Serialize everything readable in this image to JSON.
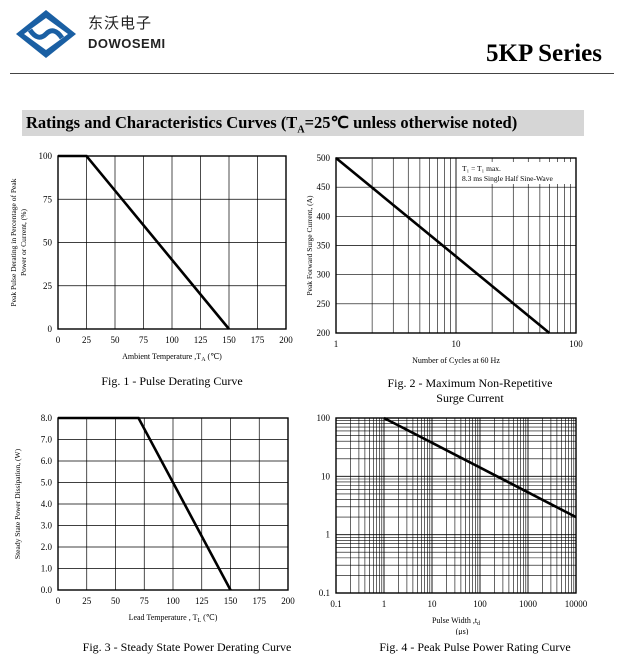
{
  "header": {
    "company_cn": "东沃电子",
    "company_en": "DOWOSEMI",
    "series": "5KP Series"
  },
  "section": {
    "title_prefix": "Ratings and Characteristics Curves (T",
    "title_sub": "A",
    "title_suffix": "=25℃ unless otherwise noted)"
  },
  "chart_data": [
    {
      "id": "fig1",
      "type": "line",
      "caption": "Fig. 1 - Pulse Derating Curve",
      "xlabel": "Ambient Temperature ,T",
      "xlabel_sub": "A",
      "xlabel_end": " (℃)",
      "ylabel": [
        "Peak Pulse Derating in Percentage of Peak",
        "Power or Current, (%)"
      ],
      "xlim": [
        0,
        200
      ],
      "ylim": [
        0,
        100
      ],
      "xticks": [
        "0",
        "25",
        "50",
        "75",
        "100",
        "125",
        "150",
        "175",
        "200"
      ],
      "yticks": [
        "0",
        "25",
        "50",
        "75",
        "100"
      ],
      "x": [
        0,
        25,
        150
      ],
      "y": [
        100,
        100,
        0
      ]
    },
    {
      "id": "fig2",
      "type": "line",
      "xscale": "log",
      "caption": [
        "Fig. 2 - Maximum Non-Repetitive",
        "Surge Current"
      ],
      "xlabel": "Number of Cycles at 60 Hz",
      "ylabel": "Peak Forward Surge Current, (A)",
      "xlim": [
        1,
        100
      ],
      "ylim": [
        200,
        500
      ],
      "xticks": [
        "1",
        "10",
        "100"
      ],
      "yticks": [
        "200",
        "250",
        "300",
        "350",
        "400",
        "450",
        "500"
      ],
      "annotation": [
        "T₁ = T₁ max.",
        "8.3 ms Single Half Sine-Wave"
      ],
      "x": [
        1,
        60
      ],
      "y": [
        500,
        200
      ]
    },
    {
      "id": "fig3",
      "type": "line",
      "caption": "Fig. 3 - Steady State Power Derating Curve",
      "xlabel": "Lead Temperature , T",
      "xlabel_sub": "L",
      "xlabel_end": " (℃)",
      "ylabel": "Steady State Power Dissipation, (W)",
      "xlim": [
        0,
        200
      ],
      "ylim": [
        0,
        8
      ],
      "xticks": [
        "0",
        "25",
        "50",
        "75",
        "100",
        "125",
        "150",
        "175",
        "200"
      ],
      "yticks": [
        "0.0",
        "1.0",
        "2.0",
        "3.0",
        "4.0",
        "5.0",
        "6.0",
        "7.0",
        "8.0"
      ],
      "x": [
        0,
        70,
        150
      ],
      "y": [
        8,
        8,
        0
      ]
    },
    {
      "id": "fig4",
      "type": "line",
      "xscale": "log",
      "yscale": "log",
      "caption": "Fig. 4 - Peak Pulse Power Rating Curve",
      "xlabel": "Pulse Width ,t",
      "xlabel_sub": "d",
      "xlabel_unit": "(μs)",
      "ylabel": "",
      "xlim": [
        0.1,
        10000
      ],
      "ylim": [
        0.1,
        100
      ],
      "xticks": [
        "0.1",
        "1",
        "10",
        "100",
        "1000",
        "10000"
      ],
      "yticks": [
        "0.1",
        "1",
        "10",
        "100"
      ],
      "x": [
        1,
        10000
      ],
      "y": [
        100,
        2
      ]
    }
  ]
}
